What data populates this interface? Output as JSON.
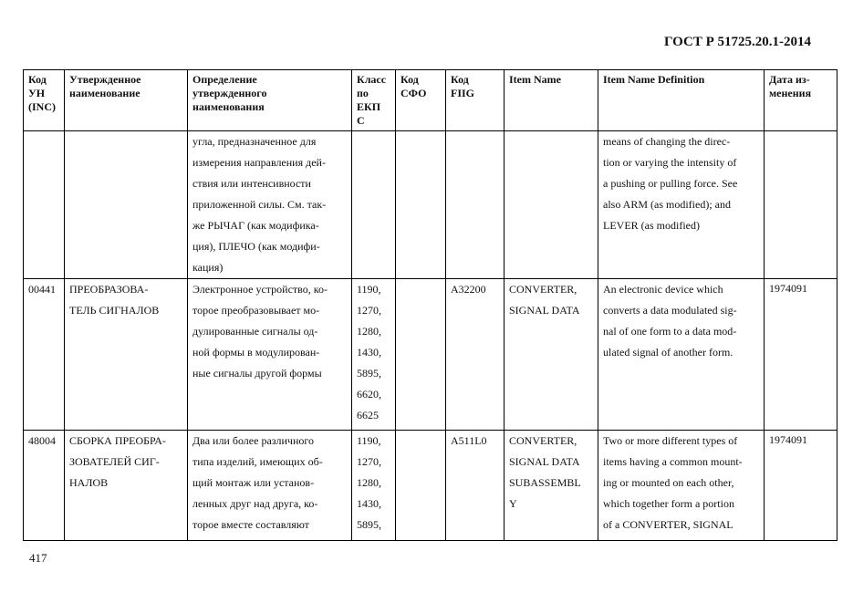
{
  "document_code": "ГОСТ Р 51725.20.1-2014",
  "page_number": "417",
  "columns": [
    [
      "Код",
      "УН",
      "(INC)"
    ],
    [
      "Утвержденное",
      "наименование"
    ],
    [
      "Определение",
      "утвержденного",
      "наименования"
    ],
    [
      "Класс",
      "по",
      "ЕКП",
      "С"
    ],
    [
      "Код",
      "СФО"
    ],
    [
      "Код",
      "FIIG"
    ],
    [
      "Item Name"
    ],
    [
      "Item Name Definition"
    ],
    [
      "Дата из-",
      "менения"
    ]
  ],
  "rows": [
    {
      "inc": [],
      "name": [],
      "definition": [
        "угла, предназначенное для",
        "измерения направления дей-",
        "ствия или интенсивности",
        "приложенной силы. См. так-",
        "же РЫЧАГ (как модифика-",
        "ция), ПЛЕЧО (как модифи-",
        "кация)"
      ],
      "class": [],
      "sfo": [],
      "fiig": [],
      "item_name": [],
      "item_definition": [
        "means of changing the direc-",
        "tion or varying the intensity of",
        "a pushing or pulling force. See",
        "also ARM (as modified); and",
        "LEVER (as modified)"
      ],
      "date": []
    },
    {
      "inc": [
        "00441"
      ],
      "name": [
        "ПРЕОБРАЗОВА-",
        "ТЕЛЬ СИГНАЛОВ"
      ],
      "definition": [
        "Электронное устройство, ко-",
        "торое преобразовывает мо-",
        "дулированные сигналы од-",
        "ной формы в модулирован-",
        "ные сигналы другой формы"
      ],
      "class": [
        "1190,",
        "1270,",
        "1280,",
        "1430,",
        "5895,",
        "6620,",
        "6625"
      ],
      "sfo": [],
      "fiig": [
        "A32200"
      ],
      "item_name": [
        "CONVERTER,",
        "SIGNAL DATA"
      ],
      "item_definition": [
        "An electronic device which",
        "converts a data modulated sig-",
        "nal of one form to a data mod-",
        "ulated signal of another form."
      ],
      "date": [
        "1974091"
      ]
    },
    {
      "inc": [
        "48004"
      ],
      "name": [
        "СБОРКА ПРЕОБРА-",
        "ЗОВАТЕЛЕЙ СИГ-",
        "НАЛОВ"
      ],
      "definition": [
        "Два или более различного",
        "типа изделий, имеющих об-",
        "щий монтаж или установ-",
        "ленных друг над друга, ко-",
        "торое вместе составляют"
      ],
      "class": [
        "1190,",
        "1270,",
        "1280,",
        "1430,",
        "5895,"
      ],
      "sfo": [],
      "fiig": [
        "A511L0"
      ],
      "item_name": [
        "CONVERTER,",
        "SIGNAL DATA",
        "SUBASSEMBL",
        "Y"
      ],
      "item_definition": [
        "Two or more different types of",
        "items having a common mount-",
        "ing or mounted on each other,",
        "which together form a portion",
        "of a CONVERTER, SIGNAL"
      ],
      "date": [
        "1974091"
      ]
    }
  ]
}
